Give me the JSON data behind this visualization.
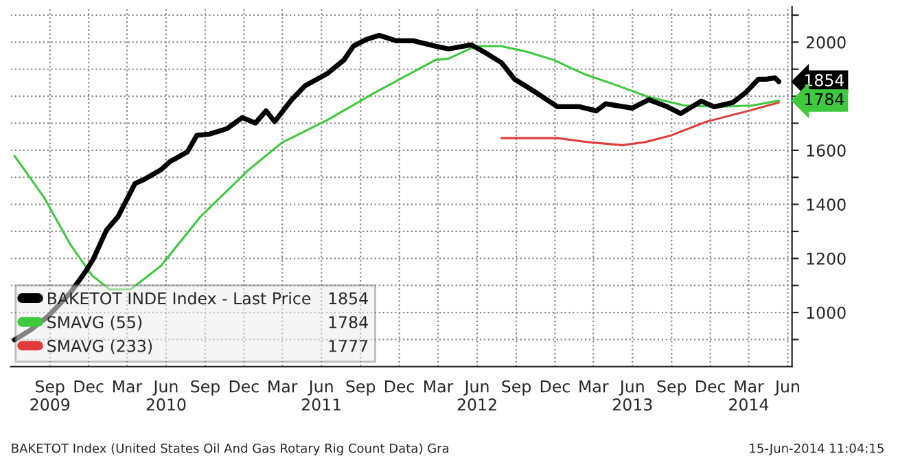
{
  "chart_data": {
    "type": "line",
    "x": [
      "2009-06-24",
      "2009-07-30",
      "2009-09-10",
      "2009-11-01",
      "2009-12-08",
      "2009-12-26",
      "2010-01-26",
      "2010-02-22",
      "2010-04-03",
      "2010-04-24",
      "2010-06-03",
      "2010-06-24",
      "2010-08-04",
      "2010-08-26",
      "2010-09-25",
      "2010-11-05",
      "2010-12-11",
      "2011-01-11",
      "2011-02-05",
      "2011-02-25",
      "2011-04-06",
      "2011-05-07",
      "2011-06-28",
      "2011-08-07",
      "2011-08-29",
      "2011-09-28",
      "2011-10-29",
      "2011-12-08",
      "2012-01-18",
      "2012-03-09",
      "2012-04-09",
      "2012-06-01",
      "2012-07-01",
      "2012-08-11",
      "2012-09-11",
      "2012-11-02",
      "2012-12-21",
      "2013-02-11",
      "2013-03-22",
      "2013-04-13",
      "2013-06-14",
      "2013-07-23",
      "2013-09-05",
      "2013-10-06",
      "2013-11-24",
      "2013-12-24",
      "2014-02-06",
      "2014-03-07",
      "2014-04-07",
      "2014-04-25",
      "2014-05-16",
      "2014-05-25"
    ],
    "series": [
      {
        "name": "BAKETOT INDE Index - Last Price",
        "color": "#000000",
        "values": [
          899,
          934,
          985,
          1071,
          1152,
          1198,
          1305,
          1355,
          1477,
          1492,
          1528,
          1558,
          1594,
          1655,
          1660,
          1680,
          1721,
          1701,
          1746,
          1706,
          1787,
          1838,
          1883,
          1934,
          1985,
          2010,
          2025,
          2005,
          2005,
          1985,
          1975,
          1990,
          1964,
          1924,
          1863,
          1812,
          1761,
          1761,
          1746,
          1772,
          1756,
          1787,
          1761,
          1736,
          1782,
          1761,
          1777,
          1812,
          1863,
          1863,
          1868,
          1854
        ]
      },
      {
        "name": "SMAVG (55)",
        "color": "#3ec93e",
        "x": [
          "2009-06-24",
          "2009-09-01",
          "2009-11-01",
          "2009-12-23",
          "2010-02-02",
          "2010-03-24",
          "2010-06-03",
          "2010-09-04",
          "2010-12-26",
          "2011-03-15",
          "2011-06-28",
          "2011-10-17",
          "2012-03-09",
          "2012-04-09",
          "2012-06-10",
          "2012-08-11",
          "2012-10-11",
          "2012-12-12",
          "2013-02-20",
          "2013-05-13",
          "2013-07-23",
          "2013-10-14",
          "2014-01-06",
          "2014-03-25",
          "2014-05-25"
        ],
        "values": [
          1579,
          1426,
          1254,
          1137,
          1086,
          1086,
          1173,
          1355,
          1528,
          1629,
          1711,
          1812,
          1934,
          1939,
          1985,
          1985,
          1964,
          1934,
          1883,
          1838,
          1797,
          1766,
          1761,
          1766,
          1784
        ]
      },
      {
        "name": "SMAVG (233)",
        "color": "#e03c3c",
        "x": [
          "2012-08-11",
          "2012-12-21",
          "2013-03-03",
          "2013-05-22",
          "2013-07-14",
          "2013-09-14",
          "2013-12-06",
          "2014-03-15",
          "2014-05-25"
        ],
        "values": [
          1645,
          1645,
          1630,
          1619,
          1630,
          1655,
          1706,
          1746,
          1777
        ]
      }
    ],
    "value_labels": [
      "1854",
      "1784",
      "1777"
    ],
    "annotations": [
      "1854",
      "1784",
      "BAKETOT Index (United States Oil And Gas Rotary Rig Count Data) Gra",
      "15-Jun-2014 11:04:15"
    ],
    "xlim": [
      "2009-06-15",
      "2014-06-25"
    ],
    "xticks": [
      {
        "value": "2009-09-15",
        "label": "Sep\n2009"
      },
      {
        "value": "2009-12-15",
        "label": "Dec"
      },
      {
        "value": "2010-03-15",
        "label": "Mar"
      },
      {
        "value": "2010-06-15",
        "label": "Jun\n2010"
      },
      {
        "value": "2010-09-15",
        "label": "Sep"
      },
      {
        "value": "2010-12-15",
        "label": "Dec"
      },
      {
        "value": "2011-03-15",
        "label": "Mar"
      },
      {
        "value": "2011-06-15",
        "label": "Jun\n2011"
      },
      {
        "value": "2011-09-15",
        "label": "Sep"
      },
      {
        "value": "2011-12-15",
        "label": "Dec"
      },
      {
        "value": "2012-03-15",
        "label": "Mar"
      },
      {
        "value": "2012-06-15",
        "label": "Jun\n2012"
      },
      {
        "value": "2012-09-15",
        "label": "Sep"
      },
      {
        "value": "2012-12-15",
        "label": "Dec"
      },
      {
        "value": "2013-03-15",
        "label": "Mar"
      },
      {
        "value": "2013-06-15",
        "label": "Jun\n2013"
      },
      {
        "value": "2013-09-15",
        "label": "Sep"
      },
      {
        "value": "2013-12-15",
        "label": "Dec"
      },
      {
        "value": "2014-03-15",
        "label": "Mar\n2014"
      },
      {
        "value": "2014-06-15",
        "label": "Jun"
      }
    ],
    "ylim": [
      800,
      2130
    ],
    "yticks": [
      {
        "value": 900,
        "label": null
      },
      1000,
      {
        "value": 1100,
        "label": null
      },
      1200,
      {
        "value": 1300,
        "label": null
      },
      1400,
      {
        "value": 1500,
        "label": null
      },
      1600,
      {
        "value": 1700,
        "label": null
      },
      {
        "value": 1800,
        "label": null
      },
      {
        "value": 1900,
        "label": null
      },
      2000,
      {
        "value": 2100,
        "label": null
      }
    ],
    "grid": true,
    "legend": "bottom left",
    "marker": "none",
    "line_style": "solid"
  }
}
